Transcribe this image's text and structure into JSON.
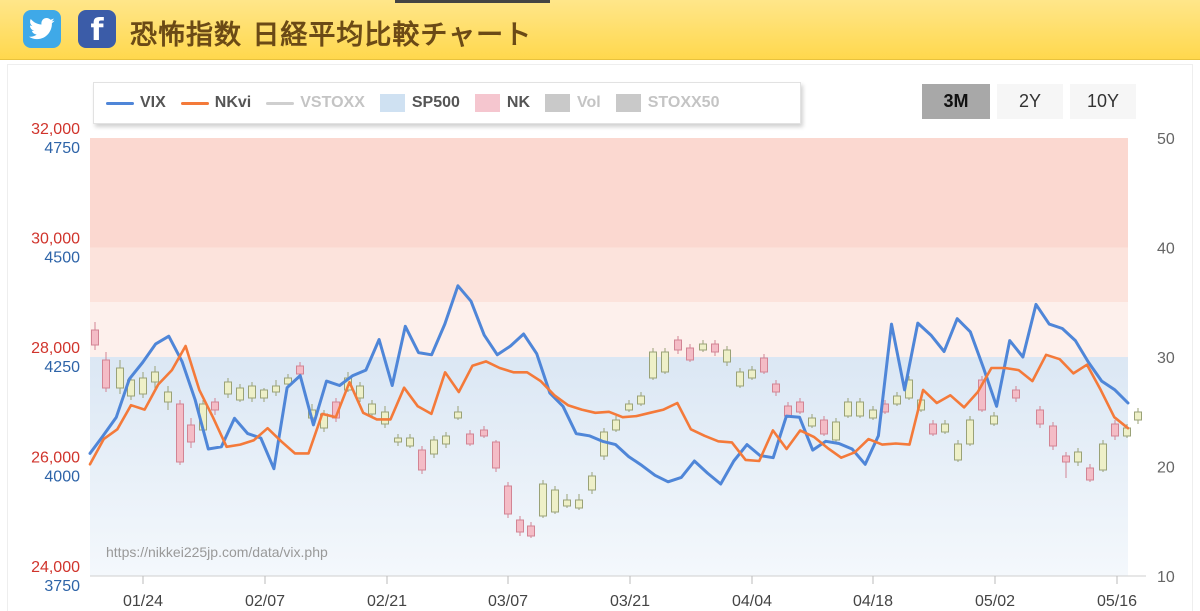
{
  "header": {
    "title": "恐怖指数 日経平均比較チャート",
    "twitter_icon": "twitter-bird-icon",
    "facebook_icon": "facebook-f-icon",
    "facebook_glyph": "f"
  },
  "legend": {
    "items": [
      {
        "label": "VIX",
        "kind": "line",
        "color": "#4f86d8",
        "enabled": true
      },
      {
        "label": "NKvi",
        "kind": "line",
        "color": "#f47a3a",
        "enabled": true
      },
      {
        "label": "VSTOXX",
        "kind": "line",
        "color": "#cfcfcf",
        "enabled": false
      },
      {
        "label": "SP500",
        "kind": "box",
        "color": "#cfe1f2",
        "enabled": true
      },
      {
        "label": "NK",
        "kind": "box",
        "color": "#f5c6cf",
        "enabled": true
      },
      {
        "label": "Vol",
        "kind": "box",
        "color": "#c9c9c9",
        "enabled": false
      },
      {
        "label": "STOXX50",
        "kind": "box",
        "color": "#c9c9c9",
        "enabled": false
      }
    ]
  },
  "range_buttons": [
    {
      "label": "3M",
      "active": true
    },
    {
      "label": "2Y",
      "active": false
    },
    {
      "label": "10Y",
      "active": false
    }
  ],
  "watermark": "https://nikkei225jp.com/data/vix.php",
  "axes": {
    "nk_ticks": [
      "32,000",
      "30,000",
      "28,000",
      "26,000",
      "24,000"
    ],
    "sp_ticks": [
      "4750",
      "4500",
      "4250",
      "4000",
      "3750"
    ],
    "vix_ticks": [
      "50",
      "40",
      "30",
      "20",
      "10"
    ],
    "x_ticks": [
      "01/24",
      "02/07",
      "02/21",
      "03/07",
      "03/21",
      "04/04",
      "04/18",
      "05/02",
      "05/16"
    ],
    "nk_color": "#d0342c",
    "sp_color": "#2e64a8",
    "vix_color": "#666666"
  },
  "chart_data": {
    "type": "line",
    "x_range": [
      "01/17",
      "05/19"
    ],
    "ylim_vix": [
      10,
      50
    ],
    "ylim_nk": [
      24000,
      32000
    ],
    "ylim_sp500": [
      3750,
      4750
    ],
    "fear_zones": [
      {
        "from": 30,
        "to": 50,
        "color": "#fbdcd6"
      },
      {
        "from": 20,
        "to": 30,
        "color": "#dde8f4"
      }
    ],
    "series": [
      {
        "name": "VIX",
        "color": "#4f86d8",
        "values": [
          21.2,
          22.8,
          24.5,
          28.0,
          29.5,
          31.2,
          31.9,
          29.6,
          26.1,
          21.6,
          21.8,
          24.4,
          23.0,
          22.6,
          19.8,
          27.2,
          28.3,
          23.8,
          27.8,
          27.4,
          28.3,
          28.8,
          31.6,
          27.4,
          32.8,
          30.4,
          30.2,
          33.0,
          36.5,
          35.1,
          32.0,
          30.2,
          31.0,
          32.1,
          30.3,
          26.7,
          25.5,
          23.0,
          22.8,
          22.3,
          22.0,
          20.9,
          20.1,
          19.2,
          18.6,
          19.0,
          20.5,
          19.4,
          18.4,
          20.5,
          22.0,
          21.0,
          20.8,
          24.6,
          24.5,
          21.5,
          22.3,
          22.1,
          21.6,
          20.2,
          22.8,
          33.0,
          27.0,
          33.1,
          32.0,
          30.5,
          33.5,
          32.3,
          29.0,
          25.5,
          31.5,
          30.0,
          34.8,
          33.0,
          32.6,
          31.5,
          29.5,
          27.8,
          27.0,
          25.8
        ]
      },
      {
        "name": "NKvi",
        "color": "#f47a3a",
        "values": [
          20.2,
          22.5,
          23.4,
          25.6,
          25.2,
          27.5,
          28.8,
          31.0,
          27.0,
          24.5,
          21.8,
          22.0,
          22.4,
          23.5,
          22.3,
          21.2,
          21.2,
          24.8,
          24.5,
          27.7,
          24.9,
          24.3,
          24.3,
          27.2,
          25.5,
          24.8,
          28.6,
          26.8,
          29.2,
          29.6,
          29.0,
          28.6,
          28.6,
          27.8,
          26.5,
          25.6,
          25.2,
          24.9,
          25.0,
          24.5,
          24.6,
          24.9,
          25.2,
          25.8,
          23.4,
          22.8,
          22.3,
          22.2,
          20.6,
          20.5,
          23.3,
          21.6,
          23.3,
          22.7,
          21.7,
          20.8,
          21.3,
          22.5,
          22.0,
          22.1,
          22.0,
          27.0,
          25.8,
          26.5,
          25.4,
          26.8,
          29.0,
          29.0,
          28.8,
          27.8,
          30.2,
          29.8,
          28.5,
          29.3,
          27.0,
          24.5,
          23.5
        ]
      }
    ]
  }
}
